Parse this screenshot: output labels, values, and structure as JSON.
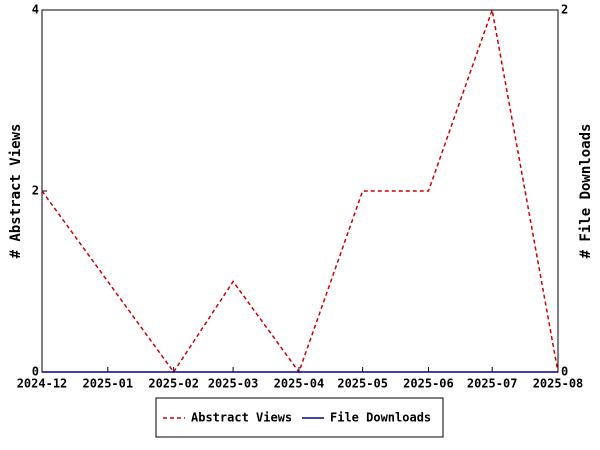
{
  "chart_data": {
    "type": "line",
    "x": [
      "2024-12",
      "2025-01",
      "2025-02",
      "2025-03",
      "2025-04",
      "2025-05",
      "2025-06",
      "2025-07",
      "2025-08"
    ],
    "ylabel": "# Abstract Views",
    "y2label": "# File Downloads",
    "ylim": [
      0,
      4
    ],
    "yticks": [
      0,
      2,
      4
    ],
    "y2lim": [
      0,
      2
    ],
    "y2ticks": [
      0,
      2
    ],
    "legend": "bottom",
    "series": [
      {
        "name": "Abstract Views",
        "color": "#cc0000",
        "dash": true,
        "values": [
          2,
          1,
          0,
          1,
          0,
          2,
          2,
          4,
          0
        ]
      },
      {
        "name": "File Downloads",
        "color": "#000099",
        "dash": false,
        "axis": "y2",
        "values": [
          0,
          0,
          0,
          0,
          0,
          0,
          0,
          0,
          0
        ]
      }
    ]
  }
}
